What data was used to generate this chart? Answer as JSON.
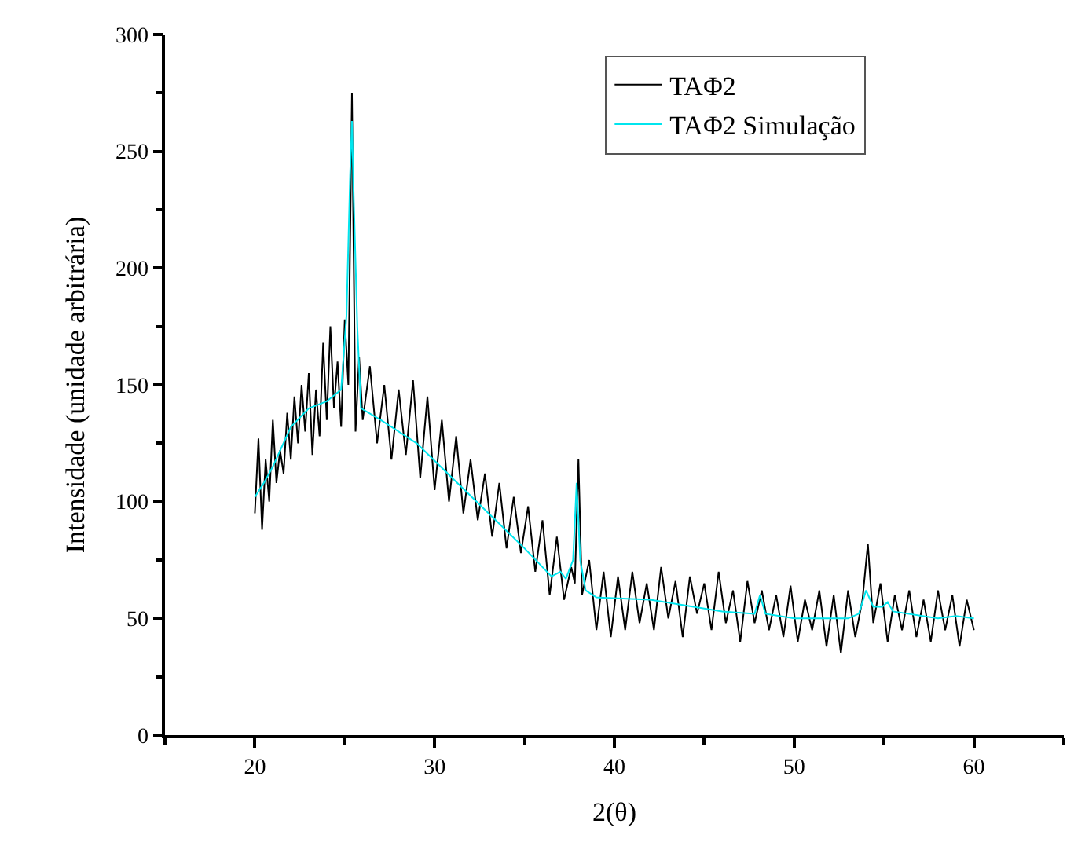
{
  "chart_data": {
    "type": "line",
    "xlabel": "2(θ)",
    "ylabel": "Intensidade (unidade arbitrária)",
    "xlim": [
      15,
      65
    ],
    "ylim": [
      0,
      300
    ],
    "xticks": [
      {
        "value": 15,
        "label": null
      },
      20,
      {
        "value": 25,
        "label": null
      },
      30,
      {
        "value": 35,
        "label": null
      },
      40,
      {
        "value": 45,
        "label": null
      },
      50,
      {
        "value": 55,
        "label": null
      },
      60,
      {
        "value": 65,
        "label": null
      }
    ],
    "yticks": [
      0,
      {
        "value": 25,
        "label": null
      },
      50,
      {
        "value": 75,
        "label": null
      },
      100,
      {
        "value": 125,
        "label": null
      },
      150,
      {
        "value": 175,
        "label": null
      },
      200,
      {
        "value": 225,
        "label": null
      },
      250,
      {
        "value": 275,
        "label": null
      },
      300
    ],
    "legend": "top right",
    "marker": "none",
    "line_style": "solid",
    "series": [
      {
        "name": "TAΦ2",
        "color": "#000000",
        "x": [
          20,
          20.2,
          20.4,
          20.6,
          20.8,
          21,
          21.2,
          21.4,
          21.6,
          21.8,
          22,
          22.2,
          22.4,
          22.6,
          22.8,
          23,
          23.2,
          23.4,
          23.6,
          23.8,
          24,
          24.2,
          24.4,
          24.6,
          24.8,
          25,
          25.2,
          25.4,
          25.6,
          25.8,
          26,
          26.4,
          26.8,
          27.2,
          27.6,
          28,
          28.4,
          28.8,
          29.2,
          29.6,
          30,
          30.4,
          30.8,
          31.2,
          31.6,
          32,
          32.4,
          32.8,
          33.2,
          33.6,
          34,
          34.4,
          34.8,
          35.2,
          35.6,
          36,
          36.4,
          36.8,
          37.2,
          37.6,
          37.8,
          38,
          38.2,
          38.6,
          39,
          39.4,
          39.8,
          40.2,
          40.6,
          41,
          41.4,
          41.8,
          42.2,
          42.6,
          43,
          43.4,
          43.8,
          44.2,
          44.6,
          45,
          45.4,
          45.8,
          46.2,
          46.6,
          47,
          47.4,
          47.8,
          48.2,
          48.6,
          49,
          49.4,
          49.8,
          50.2,
          50.6,
          51,
          51.4,
          51.8,
          52.2,
          52.6,
          53,
          53.4,
          53.8,
          54.1,
          54.4,
          54.8,
          55.2,
          55.6,
          56,
          56.4,
          56.8,
          57.2,
          57.6,
          58,
          58.4,
          58.8,
          59.2,
          59.6,
          60
        ],
        "values": [
          95,
          127,
          88,
          118,
          100,
          135,
          108,
          122,
          112,
          138,
          118,
          145,
          125,
          150,
          130,
          155,
          120,
          148,
          128,
          168,
          135,
          175,
          140,
          160,
          132,
          178,
          150,
          275,
          130,
          162,
          135,
          158,
          125,
          150,
          118,
          148,
          120,
          152,
          110,
          145,
          105,
          135,
          100,
          128,
          95,
          118,
          92,
          112,
          85,
          108,
          80,
          102,
          78,
          98,
          70,
          92,
          60,
          85,
          58,
          72,
          65,
          118,
          60,
          75,
          45,
          70,
          42,
          68,
          45,
          70,
          48,
          65,
          45,
          72,
          50,
          66,
          42,
          68,
          52,
          65,
          45,
          70,
          48,
          62,
          40,
          66,
          48,
          62,
          45,
          60,
          42,
          64,
          40,
          58,
          45,
          62,
          38,
          60,
          35,
          62,
          42,
          58,
          82,
          48,
          65,
          40,
          60,
          45,
          62,
          42,
          58,
          40,
          62,
          45,
          60,
          38,
          58,
          45
        ]
      },
      {
        "name": "TAΦ2 Simulação",
        "color": "#00e5ee",
        "x": [
          20,
          20.5,
          21,
          22,
          23,
          24,
          24.8,
          25.1,
          25.3,
          25.4,
          25.5,
          25.7,
          25.9,
          27,
          29,
          31,
          33,
          35,
          36.5,
          37,
          37.3,
          37.7,
          37.9,
          38.1,
          38.4,
          39,
          42,
          46,
          47.8,
          48.1,
          48.4,
          50,
          53,
          53.6,
          54,
          54.4,
          54.9,
          55.2,
          55.5,
          58,
          59,
          60
        ],
        "values": [
          102,
          108,
          115,
          132,
          140,
          143,
          148,
          180,
          240,
          263,
          230,
          175,
          140,
          135,
          125,
          110,
          95,
          80,
          68,
          70,
          67,
          75,
          108,
          75,
          62,
          59,
          58,
          53,
          52,
          60,
          52,
          50,
          50,
          52,
          62,
          55,
          55,
          57,
          53,
          50,
          51,
          50
        ]
      }
    ]
  }
}
